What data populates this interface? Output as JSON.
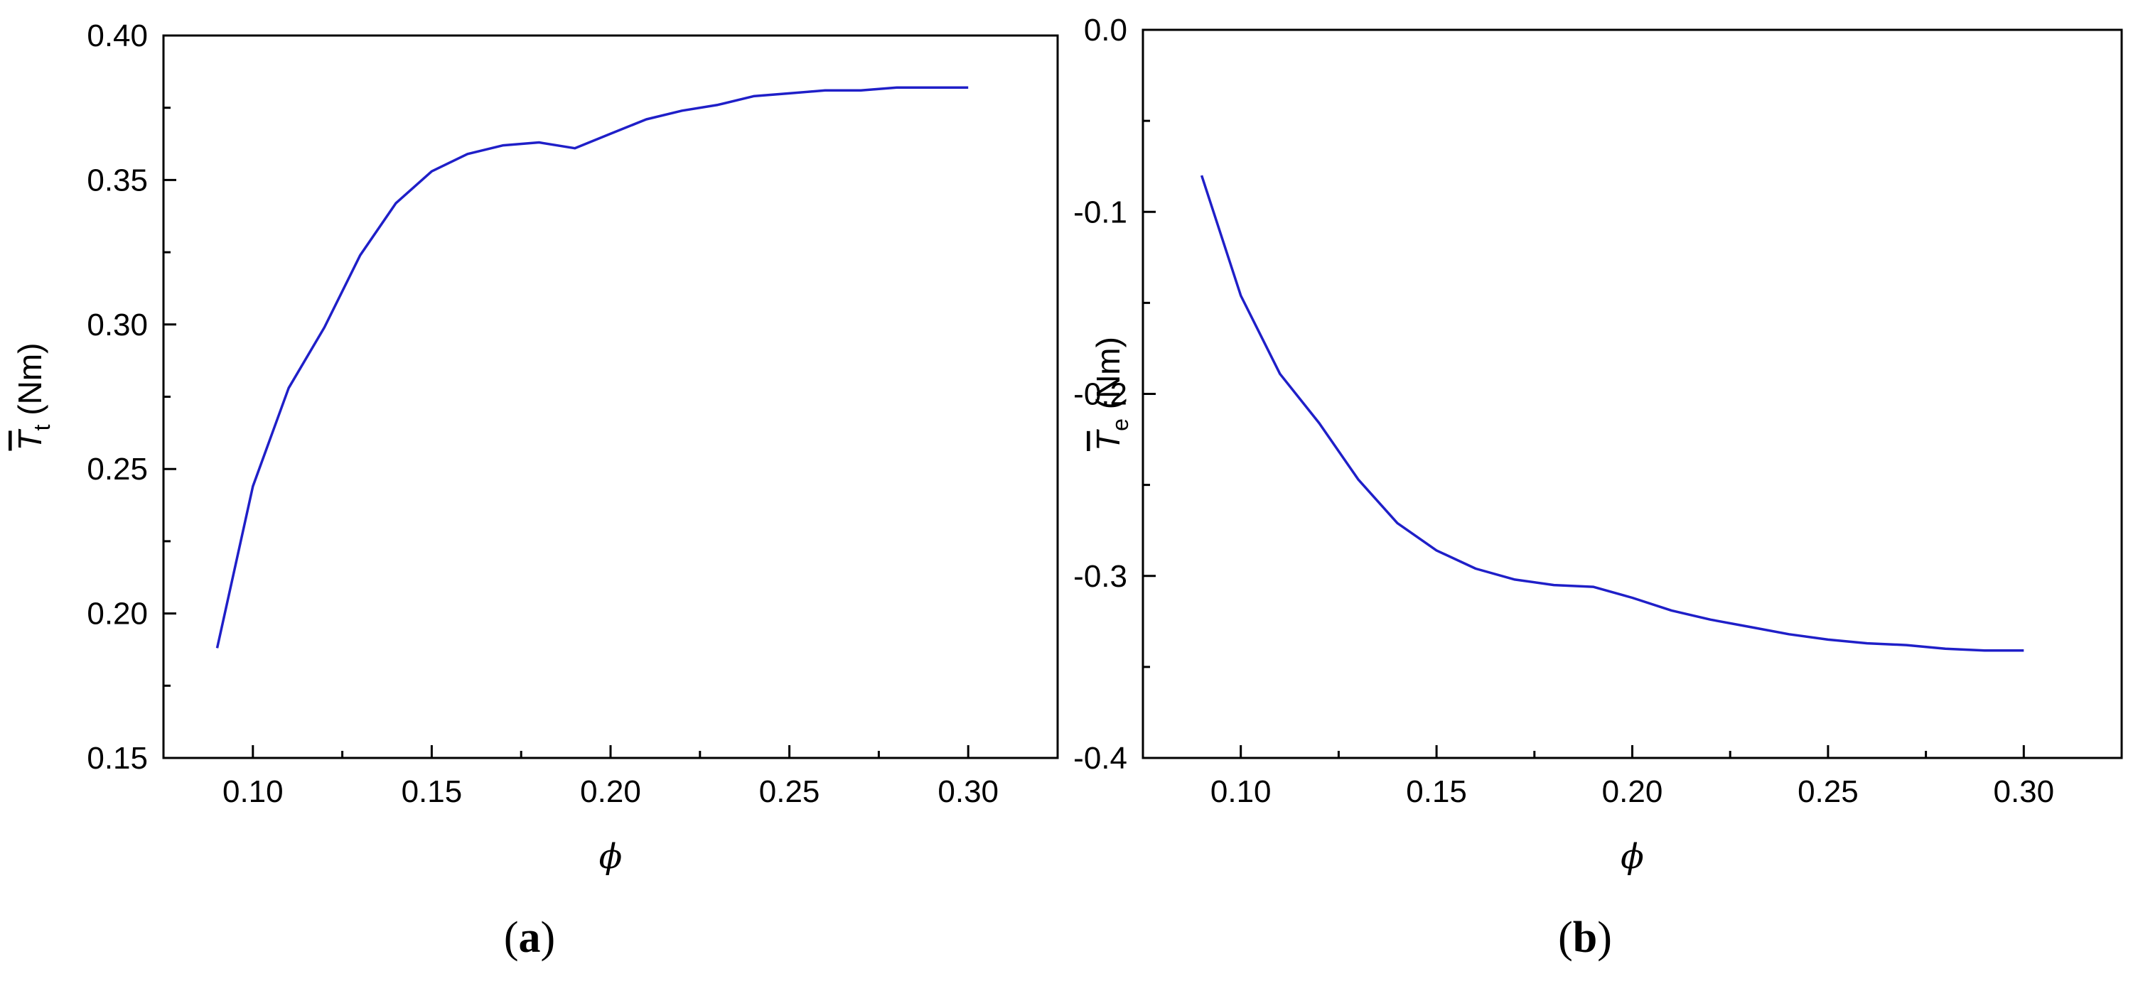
{
  "chart_data": [
    {
      "panel": "(a)",
      "panel_letter": "a",
      "type": "line",
      "xlabel": "ϕ",
      "ylabel_symbol": "T",
      "ylabel_subscript": "t",
      "ylabel_unit": "(Nm)",
      "xlim": [
        0.075,
        0.325
      ],
      "ylim": [
        0.15,
        0.4
      ],
      "xticks": [
        0.1,
        0.15,
        0.2,
        0.25,
        0.3
      ],
      "xtick_labels": [
        "0.10",
        "0.15",
        "0.20",
        "0.25",
        "0.30"
      ],
      "yticks": [
        0.15,
        0.2,
        0.25,
        0.3,
        0.35,
        0.4
      ],
      "ytick_labels": [
        "0.15",
        "0.20",
        "0.25",
        "0.30",
        "0.35",
        "0.40"
      ],
      "line_color": "#1f1fc8",
      "series": [
        {
          "x": [
            0.09,
            0.1,
            0.11,
            0.12,
            0.13,
            0.14,
            0.15,
            0.16,
            0.17,
            0.18,
            0.19,
            0.2,
            0.21,
            0.22,
            0.23,
            0.24,
            0.25,
            0.26,
            0.27,
            0.28,
            0.29,
            0.3
          ],
          "y": [
            0.188,
            0.244,
            0.278,
            0.299,
            0.324,
            0.342,
            0.353,
            0.359,
            0.362,
            0.363,
            0.361,
            0.366,
            0.371,
            0.374,
            0.376,
            0.379,
            0.38,
            0.381,
            0.381,
            0.382,
            0.382,
            0.382
          ]
        }
      ]
    },
    {
      "panel": "(b)",
      "panel_letter": "b",
      "type": "line",
      "xlabel": "ϕ",
      "ylabel_symbol": "T",
      "ylabel_subscript": "e",
      "ylabel_unit": "(Nm)",
      "xlim": [
        0.075,
        0.325
      ],
      "ylim": [
        -0.4,
        0.0
      ],
      "xticks": [
        0.1,
        0.15,
        0.2,
        0.25,
        0.3
      ],
      "xtick_labels": [
        "0.10",
        "0.15",
        "0.20",
        "0.25",
        "0.30"
      ],
      "yticks": [
        -0.4,
        -0.3,
        -0.2,
        -0.1,
        0.0
      ],
      "ytick_labels": [
        "-0.4",
        "-0.3",
        "-0.2",
        "-0.1",
        "0.0"
      ],
      "line_color": "#1f1fc8",
      "series": [
        {
          "x": [
            0.09,
            0.1,
            0.11,
            0.12,
            0.13,
            0.14,
            0.15,
            0.16,
            0.17,
            0.18,
            0.19,
            0.2,
            0.21,
            0.22,
            0.23,
            0.24,
            0.25,
            0.26,
            0.27,
            0.28,
            0.29,
            0.3
          ],
          "y": [
            -0.08,
            -0.146,
            -0.189,
            -0.216,
            -0.247,
            -0.271,
            -0.286,
            -0.296,
            -0.302,
            -0.305,
            -0.306,
            -0.312,
            -0.319,
            -0.324,
            -0.328,
            -0.332,
            -0.335,
            -0.337,
            -0.338,
            -0.34,
            -0.341,
            -0.341
          ]
        }
      ]
    }
  ]
}
